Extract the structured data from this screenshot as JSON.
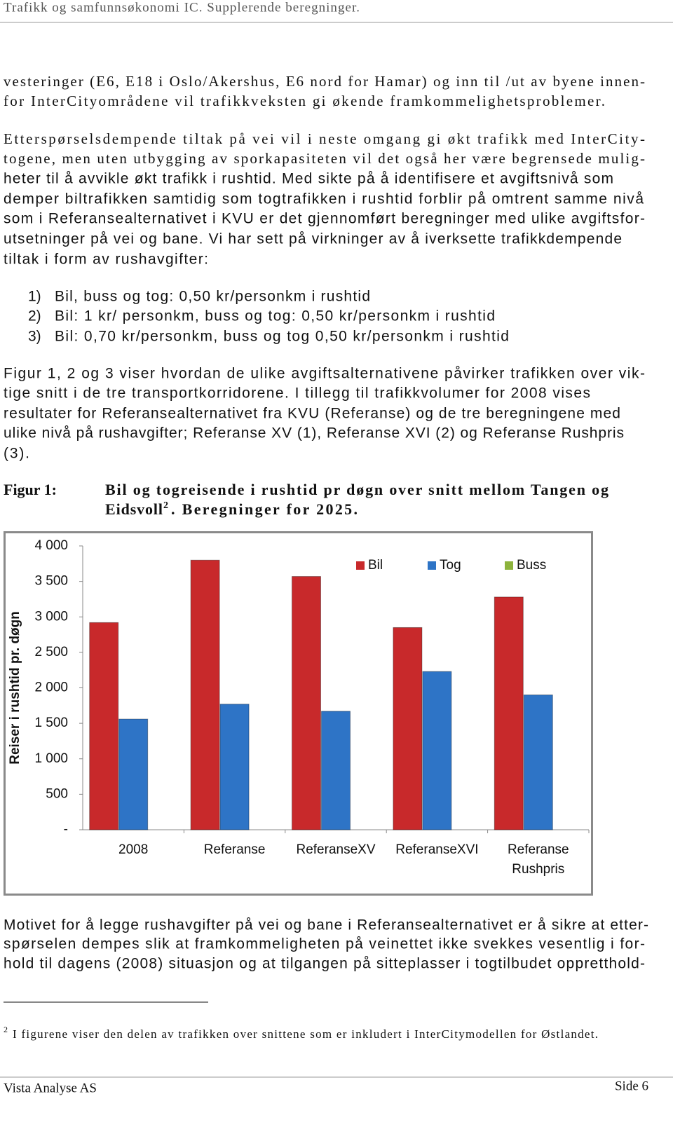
{
  "header": {
    "title": "Trafikk og samfunnsøkonomi IC. Supplerende beregninger."
  },
  "paragraphs": [
    {
      "lines": [
        "vesteringer (E6, E18 i Oslo/Akershus, E6 nord for Hamar) og inn til /ut av byene innen-",
        "for InterCityområdene vil trafikkveksten gi økende framkommelighetsproblemer."
      ]
    },
    {
      "lines": [
        "Etterspørselsdempende tiltak på vei vil i neste omgang gi økt trafikk med InterCity-",
        "togene, men uten utbygging av sporkapasiteten vil det også her være begrensede mulig-",
        "heter til å avvikle økt trafikk i rushtid.  Med sikte på å identifisere et avgiftsnivå som",
        "demper biltrafikken samtidig som togtrafikken i rushtid forblir på omtrent samme nivå",
        "som i Referansealternativet i KVU er det gjennomført beregninger med ulike avgiftsfor-",
        "utsetninger på vei og bane.  Vi har sett på virkninger av å iverksette trafikkdempende",
        "tiltak i form av rushavgifter:"
      ]
    },
    {
      "lines": [
        "Figur 1, 2 og 3 viser hvordan de ulike avgiftsalternativene påvirker trafikken over vik-",
        "tige snitt i de tre transportkorridorene.  I tillegg til trafikkvolumer for 2008 vises",
        "resultater for Referansealternativet fra KVU (Referanse) og de tre beregningene med",
        "ulike nivå på rushavgifter; Referanse XV (1), Referanse XVI (2) og Referanse Rushpris",
        "(3)."
      ]
    },
    {
      "lines": [
        "Motivet for å legge rushavgifter på vei og bane i Referansealternativet er å sikre at etter-",
        "spørselen dempes slik at framkommeligheten på veinettet ikke svekkes vesentlig i for-",
        "hold til dagens (2008) situasjon og at tilgangen på sitteplasser i togtilbudet oppretthold-"
      ]
    }
  ],
  "list": [
    {
      "number": "1)",
      "text": "Bil, buss og tog: 0,50 kr/personkm i rushtid"
    },
    {
      "number": "2)",
      "text": "Bil: 1 kr/ personkm, buss og tog: 0,50 kr/personkm i rushtid"
    },
    {
      "number": "3)",
      "text": "Bil: 0,70 kr/personkm, buss og tog 0,50 kr/personkm i rushtid"
    }
  ],
  "caption": {
    "label": "Figur 1:",
    "line1": "Bil og togreisende i rushtid pr døgn over snitt mellom Tangen og",
    "line2": "Eidsvoll",
    "footnote_ref": "2",
    "line2_rest": ".  Beregninger for 2025."
  },
  "footnote": {
    "number": "2",
    "text": "I figurene viser den delen av trafikken over snittene som er inkludert i InterCitymodellen for Østlandet."
  },
  "footer": {
    "left": "Vista Analyse AS",
    "right": "Side 6"
  },
  "chart_data": {
    "type": "bar",
    "y_label": "Reiser i rushtid pr. døgn",
    "categories": [
      "2008",
      "Referanse",
      "ReferanseXV",
      "ReferanseXVI",
      "Referanse Rushpris"
    ],
    "series": [
      {
        "name": "Bil",
        "color": "#c8292b",
        "values": [
          2920,
          3800,
          3570,
          2850,
          3280
        ]
      },
      {
        "name": "Tog",
        "color": "#2e74c6",
        "values": [
          1560,
          1770,
          1670,
          2230,
          1900
        ]
      },
      {
        "name": "Buss",
        "color": "#8db33c",
        "values": [
          0,
          0,
          0,
          0,
          0
        ]
      }
    ],
    "ylim": [
      0,
      4000
    ],
    "yticks": [
      {
        "value": 0,
        "label": "-"
      },
      500,
      {
        "value": 1000,
        "label": "1 000"
      },
      {
        "value": 1500,
        "label": "1 500"
      },
      {
        "value": 2000,
        "label": "2 000"
      },
      {
        "value": 2500,
        "label": "2 500"
      },
      {
        "value": 3000,
        "label": "3 000"
      },
      {
        "value": 3500,
        "label": "3 500"
      },
      {
        "value": 4000,
        "label": "4 000"
      }
    ],
    "grid": false,
    "legend": "top-right"
  }
}
